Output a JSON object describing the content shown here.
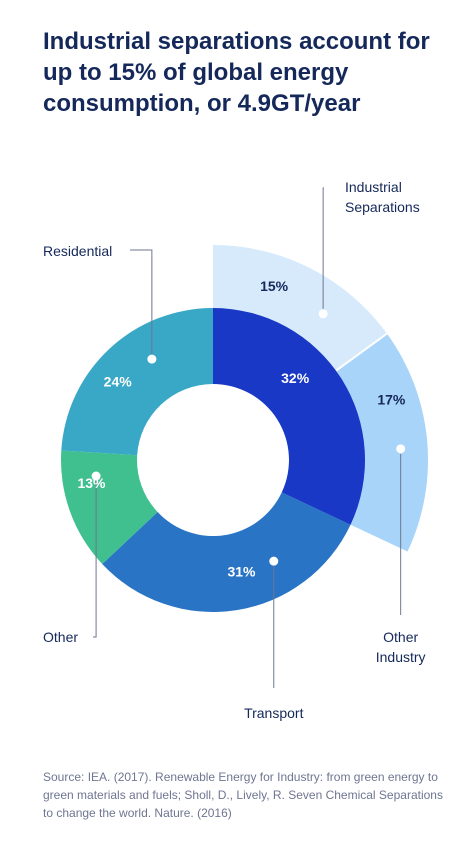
{
  "title": "Industrial separations account for up to 15% of global energy consumption, or 4.9GT/year",
  "source": "Source: IEA. (2017). Renewable Energy for Industry: from green energy to green materials and fuels; Sholl, D., Lively, R. Seven Chemical Separations to change the world. Nature. (2016)",
  "chart_data": {
    "type": "pie",
    "variant": "donut",
    "title": "Industrial separations account for up to 15% of global energy consumption, or 4.9GT/year",
    "unit": "%",
    "slices": [
      {
        "category": "Industrial Separations",
        "value": 15,
        "label": "15%",
        "color": "#d6eafc",
        "exploded": true,
        "group": "Industry"
      },
      {
        "category": "Other Industry",
        "value": 17,
        "label": "17%",
        "color": "#a8d4fa",
        "exploded": true,
        "group": "Industry"
      },
      {
        "category": "Transport",
        "value": 31,
        "label": "31%",
        "color": "#2a74c6"
      },
      {
        "category": "Other",
        "value": 13,
        "label": "13%",
        "color": "#40c08f"
      },
      {
        "category": "Residential",
        "value": 24,
        "label": "24%",
        "color": "#38a8c6"
      }
    ],
    "industry_total": {
      "value": 32,
      "label": "32%",
      "color": "#1a38c6"
    },
    "callouts": {
      "industrial_separations": "Industrial\nSeparations",
      "other_industry": "Other\nIndustry",
      "transport": "Transport",
      "other": "Other",
      "residential": "Residential"
    },
    "legend": "none"
  }
}
